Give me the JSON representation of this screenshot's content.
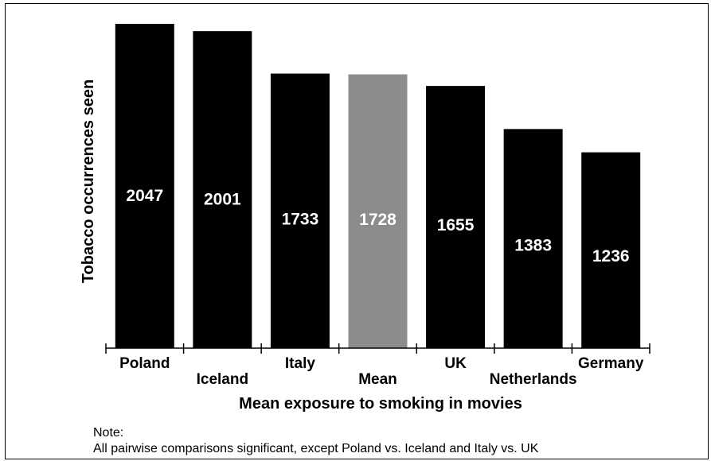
{
  "chart_data": {
    "type": "bar",
    "categories": [
      "Poland",
      "Iceland",
      "Italy",
      "Mean",
      "UK",
      "Netherlands",
      "Germany"
    ],
    "values": [
      2047,
      2001,
      1733,
      1728,
      1655,
      1383,
      1236
    ],
    "value_labels": [
      "2047",
      "2001",
      "1733",
      "1728",
      "1655",
      "1383",
      "1236"
    ],
    "highlight_category": "Mean",
    "colors": {
      "bar": "#000000",
      "highlight": "#8c8c8c",
      "value_text": "#ffffff"
    },
    "xlabel": "Mean exposure to smoking in movies",
    "ylabel": "Tobacco occurrences seen",
    "ylim": [
      0,
      2100
    ],
    "grid": false,
    "legend": "none"
  },
  "note": {
    "heading": "Note:",
    "text": "All pairwise comparisons significant, except Poland vs. Iceland and Italy vs. UK"
  }
}
